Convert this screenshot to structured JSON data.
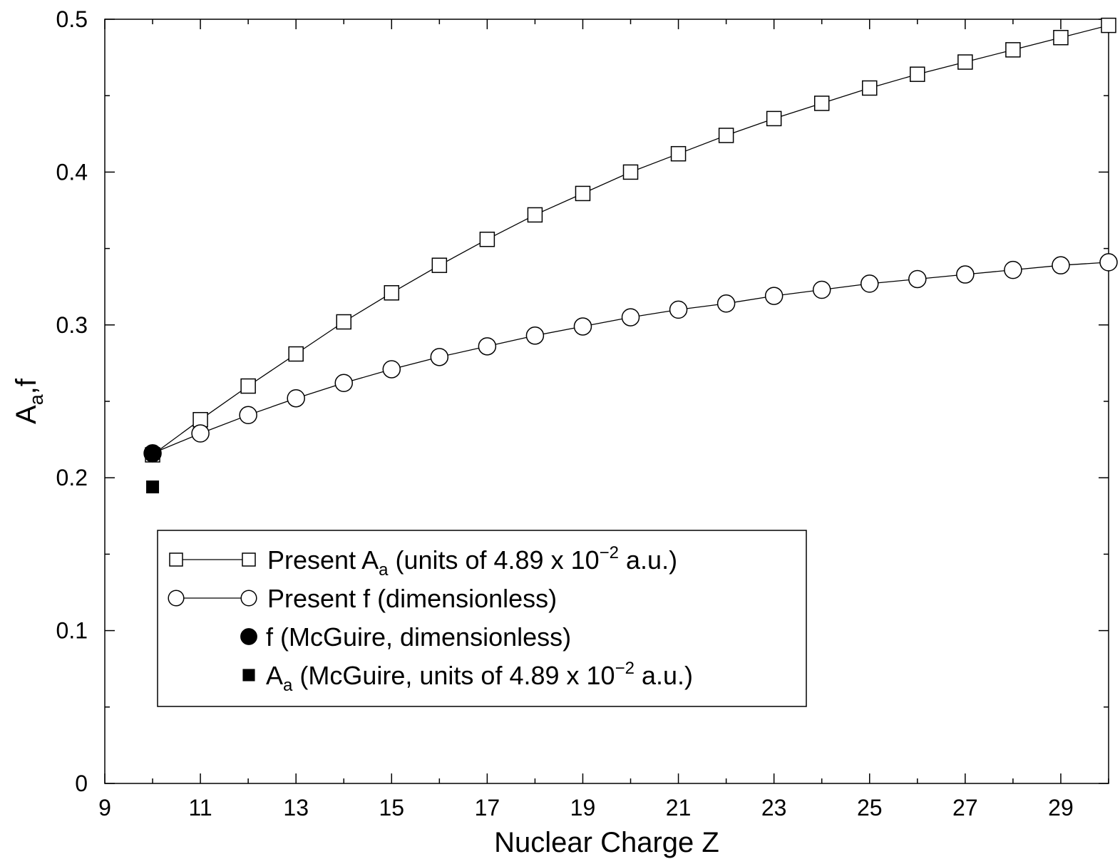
{
  "chart_data": {
    "type": "line",
    "xlabel": "Nuclear Charge Z",
    "ylabel": {
      "main": "A",
      "sub": "a",
      "rest": ",f"
    },
    "xlim": [
      9,
      30
    ],
    "ylim": [
      0,
      0.5
    ],
    "x_ticks": [
      9,
      11,
      13,
      15,
      17,
      19,
      21,
      23,
      25,
      27,
      29
    ],
    "x_ticks_minor": [
      10,
      12,
      14,
      16,
      18,
      20,
      22,
      24,
      26,
      28,
      30
    ],
    "y_ticks": [
      0,
      0.1,
      0.2,
      0.3,
      0.4,
      0.5
    ],
    "y_tick_labels": [
      "0",
      "0.1",
      "0.2",
      "0.3",
      "0.4",
      "0.5"
    ],
    "y_ticks_minor": [
      0.05,
      0.15,
      0.25,
      0.35,
      0.45
    ],
    "grid": false,
    "legend_position": "lower-left",
    "series": [
      {
        "name_parts": [
          "Present A",
          "a",
          " (units of 4.89 x 10",
          "−2",
          " a.u.)"
        ],
        "marker": "open-square",
        "line": true,
        "x": [
          10,
          11,
          12,
          13,
          14,
          15,
          16,
          17,
          18,
          19,
          20,
          21,
          22,
          23,
          24,
          25,
          26,
          27,
          28,
          29,
          30
        ],
        "values": [
          0.215,
          0.238,
          0.26,
          0.281,
          0.302,
          0.321,
          0.339,
          0.356,
          0.372,
          0.386,
          0.4,
          0.412,
          0.424,
          0.435,
          0.445,
          0.455,
          0.464,
          0.472,
          0.48,
          0.488,
          0.496
        ]
      },
      {
        "name_parts": [
          "Present f (dimensionless)"
        ],
        "marker": "open-circle",
        "line": true,
        "x": [
          10,
          11,
          12,
          13,
          14,
          15,
          16,
          17,
          18,
          19,
          20,
          21,
          22,
          23,
          24,
          25,
          26,
          27,
          28,
          29,
          30
        ],
        "values": [
          0.216,
          0.229,
          0.241,
          0.252,
          0.262,
          0.271,
          0.279,
          0.286,
          0.293,
          0.299,
          0.305,
          0.31,
          0.314,
          0.319,
          0.323,
          0.327,
          0.33,
          0.333,
          0.336,
          0.339,
          0.341
        ]
      },
      {
        "name_parts": [
          "f (McGuire, dimensionless)"
        ],
        "marker": "filled-circle",
        "line": false,
        "x": [
          10
        ],
        "values": [
          0.216
        ]
      },
      {
        "name_parts": [
          "A",
          "a",
          " (McGuire, units of 4.89 x 10",
          "−2",
          " a.u.)"
        ],
        "marker": "filled-square",
        "line": false,
        "x": [
          10
        ],
        "values": [
          0.194
        ]
      }
    ]
  }
}
